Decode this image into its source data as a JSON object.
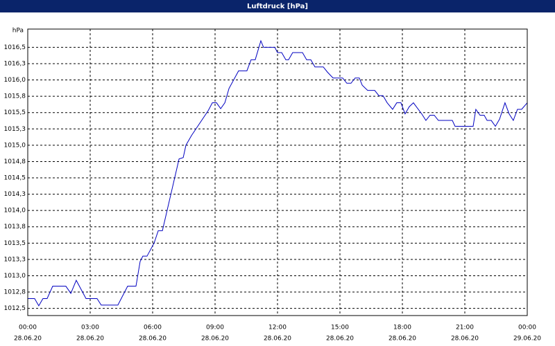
{
  "chart_data": {
    "type": "line",
    "title": "Luftdruck [hPa]",
    "y_label": "hPa",
    "color": "#0000c0",
    "grid": true,
    "xlim": [
      0,
      24
    ],
    "ylim": [
      1012.39,
      1016.78
    ],
    "xticks": [
      {
        "value": 0,
        "label": "00:00",
        "date": "28.06.20"
      },
      {
        "value": 3,
        "label": "03:00",
        "date": "28.06.20"
      },
      {
        "value": 6,
        "label": "06:00",
        "date": "28.06.20"
      },
      {
        "value": 9,
        "label": "09:00",
        "date": "28.06.20"
      },
      {
        "value": 12,
        "label": "12:00",
        "date": "28.06.20"
      },
      {
        "value": 15,
        "label": "15:00",
        "date": "28.06.20"
      },
      {
        "value": 18,
        "label": "18:00",
        "date": "28.06.20"
      },
      {
        "value": 21,
        "label": "21:00",
        "date": "28.06.20"
      },
      {
        "value": 24,
        "label": "00:00",
        "date": "29.06.20"
      }
    ],
    "yticks": [
      {
        "value": 1016.5,
        "label": "1016,5"
      },
      {
        "value": 1016.25,
        "label": "1016,3"
      },
      {
        "value": 1016,
        "label": "1016,0"
      },
      {
        "value": 1015.75,
        "label": "1015,8"
      },
      {
        "value": 1015.5,
        "label": "1015,5"
      },
      {
        "value": 1015.25,
        "label": "1015,3"
      },
      {
        "value": 1015,
        "label": "1015,0"
      },
      {
        "value": 1014.75,
        "label": "1014,8"
      },
      {
        "value": 1014.5,
        "label": "1014,5"
      },
      {
        "value": 1014.25,
        "label": "1014,3"
      },
      {
        "value": 1014,
        "label": "1014,0"
      },
      {
        "value": 1013.75,
        "label": "1013,8"
      },
      {
        "value": 1013.5,
        "label": "1013,5"
      },
      {
        "value": 1013.25,
        "label": "1013,3"
      },
      {
        "value": 1013,
        "label": "1013,0"
      },
      {
        "value": 1012.75,
        "label": "1012,8"
      },
      {
        "value": 1012.5,
        "label": "1012,5"
      }
    ],
    "x": [
      0,
      0.33,
      0.53,
      0.73,
      0.93,
      1.2,
      1.83,
      2.07,
      2.33,
      2.8,
      3.33,
      3.53,
      4.33,
      4.8,
      5.2,
      5.4,
      5.53,
      5.73,
      6.07,
      6.27,
      6.47,
      7.27,
      7.47,
      7.6,
      7.87,
      8.67,
      8.87,
      9.07,
      9.27,
      9.47,
      9.67,
      10.13,
      10.53,
      10.73,
      10.93,
      11.2,
      11.33,
      11.87,
      12,
      12.2,
      12.4,
      12.53,
      12.73,
      13.2,
      13.4,
      13.6,
      13.8,
      14.2,
      14.4,
      14.67,
      15.13,
      15.33,
      15.53,
      15.73,
      15.93,
      16.07,
      16.33,
      16.67,
      16.87,
      17.07,
      17.27,
      17.53,
      17.73,
      17.93,
      18.13,
      18.33,
      18.53,
      18.93,
      19.13,
      19.33,
      19.53,
      19.73,
      20.4,
      20.53,
      21.4,
      21.53,
      21.73,
      21.93,
      22.07,
      22.27,
      22.47,
      22.67,
      22.93,
      23.13,
      23.33,
      23.53,
      23.73,
      24
    ],
    "values": [
      1012.65,
      1012.65,
      1012.54,
      1012.65,
      1012.65,
      1012.84,
      1012.84,
      1012.73,
      1012.93,
      1012.65,
      1012.65,
      1012.55,
      1012.55,
      1012.84,
      1012.84,
      1013.22,
      1013.3,
      1013.3,
      1013.5,
      1013.69,
      1013.69,
      1014.79,
      1014.81,
      1015,
      1015.15,
      1015.53,
      1015.65,
      1015.65,
      1015.56,
      1015.65,
      1015.87,
      1016.14,
      1016.14,
      1016.31,
      1016.31,
      1016.6,
      1016.5,
      1016.5,
      1016.42,
      1016.42,
      1016.31,
      1016.31,
      1016.42,
      1016.42,
      1016.31,
      1016.31,
      1016.2,
      1016.2,
      1016.12,
      1016.03,
      1016.03,
      1015.95,
      1015.95,
      1016.03,
      1016.03,
      1015.92,
      1015.84,
      1015.84,
      1015.76,
      1015.76,
      1015.65,
      1015.55,
      1015.65,
      1015.65,
      1015.48,
      1015.59,
      1015.65,
      1015.48,
      1015.38,
      1015.46,
      1015.46,
      1015.38,
      1015.38,
      1015.29,
      1015.29,
      1015.55,
      1015.46,
      1015.46,
      1015.38,
      1015.38,
      1015.29,
      1015.4,
      1015.65,
      1015.48,
      1015.38,
      1015.55,
      1015.55,
      1015.65
    ]
  }
}
